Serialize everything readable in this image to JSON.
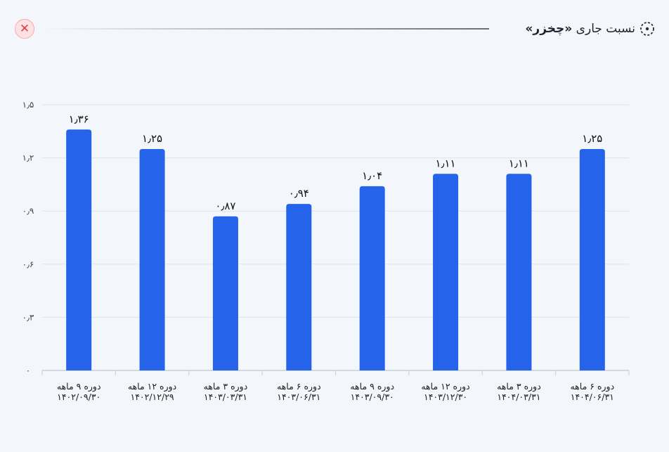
{
  "header": {
    "title": "نسبت جاری",
    "company": "«چخزر»",
    "close_symbol": "✕"
  },
  "colors": {
    "bar": "#2563eb",
    "grid": "#dfe3ea",
    "close": "#e23b4a"
  },
  "chart_data": {
    "type": "bar",
    "title": "نسبت جاری «چخزر»",
    "xlabel": "",
    "ylabel": "",
    "ylim": [
      0,
      1.5
    ],
    "yticks": [
      "۰",
      "۰٫۳",
      "۰٫۶",
      "۰٫۹",
      "۱٫۲",
      "۱٫۵"
    ],
    "ytick_values": [
      0,
      0.3,
      0.6,
      0.9,
      1.2,
      1.5
    ],
    "grid": true,
    "categories": [
      {
        "period": "دوره ۹ ماهه",
        "date": "۱۴۰۲/۰۹/۳۰"
      },
      {
        "period": "دوره ۱۲ ماهه",
        "date": "۱۴۰۲/۱۲/۲۹"
      },
      {
        "period": "دوره ۳ ماهه",
        "date": "۱۴۰۳/۰۳/۳۱"
      },
      {
        "period": "دوره ۶ ماهه",
        "date": "۱۴۰۳/۰۶/۳۱"
      },
      {
        "period": "دوره ۹ ماهه",
        "date": "۱۴۰۳/۰۹/۳۰"
      },
      {
        "period": "دوره ۱۲ ماهه",
        "date": "۱۴۰۳/۱۲/۳۰"
      },
      {
        "period": "دوره ۳ ماهه",
        "date": "۱۴۰۴/۰۳/۳۱"
      },
      {
        "period": "دوره ۶ ماهه",
        "date": "۱۴۰۴/۰۶/۳۱"
      }
    ],
    "values": [
      1.36,
      1.25,
      0.87,
      0.94,
      1.04,
      1.11,
      1.11,
      1.25
    ],
    "value_labels": [
      "۱٫۳۶",
      "۱٫۲۵",
      "۰٫۸۷",
      "۰٫۹۴",
      "۱٫۰۴",
      "۱٫۱۱",
      "۱٫۱۱",
      "۱٫۲۵"
    ]
  }
}
